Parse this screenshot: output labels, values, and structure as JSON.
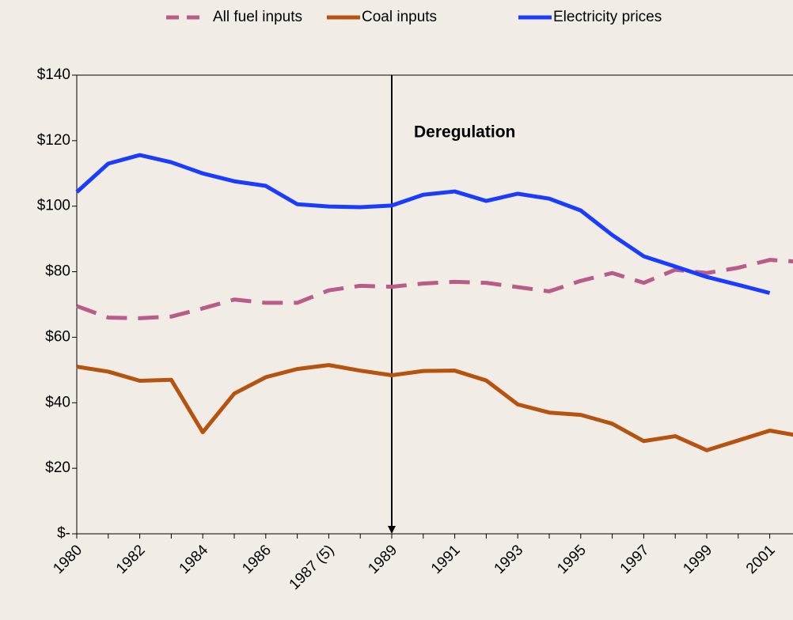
{
  "chart_data": {
    "type": "line",
    "categories": [
      "1980",
      null,
      "1982",
      null,
      "1984",
      null,
      "1986",
      null,
      "1987 (5)",
      null,
      "1989",
      null,
      "1991",
      null,
      "1993",
      null,
      "1995",
      null,
      "1997",
      null,
      "1999",
      null,
      "2001",
      null
    ],
    "series": [
      {
        "name": "All fuel inputs",
        "color": "#b85c8a",
        "dashed": true,
        "values": [
          69.5,
          66,
          65.8,
          66.3,
          68.8,
          71.5,
          70.5,
          70.5,
          74.3,
          75.7,
          75.4,
          76.4,
          76.9,
          76.6,
          75.3,
          74,
          77.2,
          79.6,
          76.6,
          80.6,
          79.6,
          81.2,
          83.6,
          83
        ]
      },
      {
        "name": "Coal inputs",
        "color": "#b5530f",
        "dashed": false,
        "values": [
          51,
          49.5,
          46.7,
          47,
          31,
          42.8,
          47.8,
          50.3,
          51.5,
          49.8,
          48.4,
          49.7,
          49.8,
          46.8,
          39.5,
          37,
          36.3,
          33.6,
          28.3,
          29.8,
          25.5,
          28.5,
          31.5,
          29.8
        ]
      },
      {
        "name": "Electricity prices",
        "color": "#1a3cff",
        "dashed": false,
        "values": [
          104.3,
          113,
          115.6,
          113.4,
          110,
          107.6,
          106.2,
          100.6,
          99.9,
          99.7,
          100.2,
          103.5,
          104.5,
          101.6,
          103.8,
          102.3,
          98.7,
          91.2,
          84.7,
          81.6,
          78.4,
          76,
          73.5,
          null
        ]
      }
    ],
    "ylim": [
      0,
      140
    ],
    "yticks": [
      {
        "value": 0,
        "label": "$-"
      },
      {
        "value": 20,
        "label": "$20"
      },
      {
        "value": 40,
        "label": "$40"
      },
      {
        "value": 60,
        "label": "$60"
      },
      {
        "value": 80,
        "label": "$80"
      },
      {
        "value": 100,
        "label": "$100"
      },
      {
        "value": 120,
        "label": "$120"
      },
      {
        "value": 140,
        "label": "$140"
      }
    ],
    "annotation": {
      "text": "Deregulation",
      "category": "1989"
    },
    "legend": "top"
  }
}
